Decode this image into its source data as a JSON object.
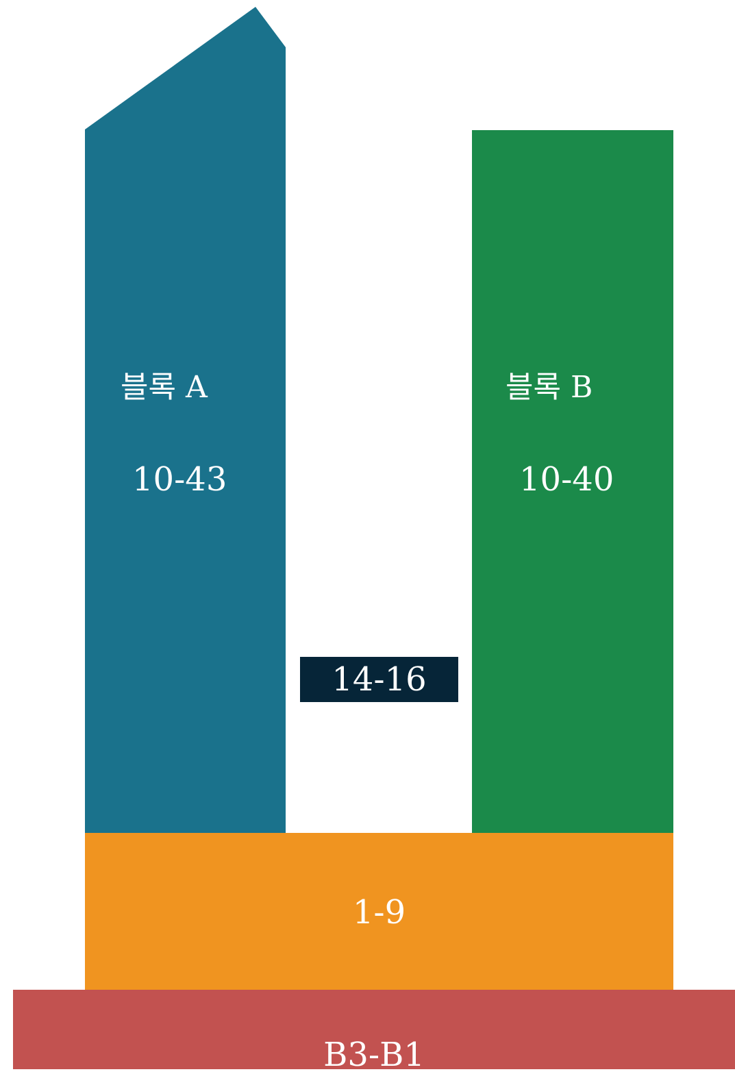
{
  "colors": {
    "block_a": "#1a728c",
    "block_b": "#1b8a4a",
    "bridge": "#062538",
    "podium": "#f09420",
    "basement": "#c25250",
    "text": "#ffffff"
  },
  "block_a": {
    "name": "블록 A",
    "floors": "10-43"
  },
  "block_b": {
    "name": "블록 B",
    "floors": "10-40"
  },
  "bridge": {
    "floors": "14-16"
  },
  "podium": {
    "floors": "1-9"
  },
  "basement": {
    "floors": "B3-B1"
  }
}
